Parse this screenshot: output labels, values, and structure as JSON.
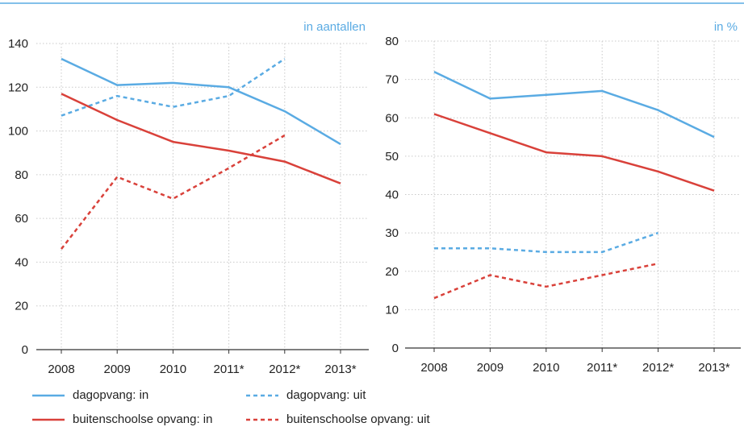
{
  "chart_data": [
    {
      "type": "line",
      "title": "in aantallen",
      "x": [
        "2008",
        "2009",
        "2010",
        "2011*",
        "2012*",
        "2013*"
      ],
      "ylim": [
        0,
        140
      ],
      "yticks": [
        0,
        20,
        40,
        60,
        80,
        100,
        120,
        140
      ],
      "grid": true,
      "series": [
        {
          "name": "dagopvang: in",
          "color": "#5aabe3",
          "dash": false,
          "values": [
            133,
            121,
            122,
            120,
            109,
            94
          ]
        },
        {
          "name": "dagopvang: uit",
          "color": "#5aabe3",
          "dash": true,
          "values": [
            107,
            116,
            111,
            116,
            133,
            null
          ]
        },
        {
          "name": "buitenschoolse opvang: in",
          "color": "#d9413a",
          "dash": false,
          "values": [
            117,
            105,
            95,
            91,
            86,
            76
          ]
        },
        {
          "name": "buitenschoolse opvang: uit",
          "color": "#d9413a",
          "dash": true,
          "values": [
            46,
            79,
            69,
            83,
            98,
            null
          ]
        }
      ]
    },
    {
      "type": "line",
      "title": "in %",
      "x": [
        "2008",
        "2009",
        "2010",
        "2011*",
        "2012*",
        "2013*"
      ],
      "ylim": [
        0,
        80
      ],
      "yticks": [
        0,
        10,
        20,
        30,
        40,
        50,
        60,
        70,
        80
      ],
      "grid": true,
      "series": [
        {
          "name": "dagopvang: in",
          "color": "#5aabe3",
          "dash": false,
          "values": [
            72,
            65,
            66,
            67,
            62,
            55
          ]
        },
        {
          "name": "dagopvang: uit",
          "color": "#5aabe3",
          "dash": true,
          "values": [
            26,
            26,
            25,
            25,
            30,
            null
          ]
        },
        {
          "name": "buitenschoolse opvang: in",
          "color": "#d9413a",
          "dash": false,
          "values": [
            61,
            56,
            51,
            50,
            46,
            41
          ]
        },
        {
          "name": "buitenschoolse opvang: uit",
          "color": "#d9413a",
          "dash": true,
          "values": [
            13,
            19,
            16,
            19,
            22,
            null
          ]
        }
      ]
    }
  ],
  "legend": [
    {
      "label": "dagopvang: in",
      "color": "#5aabe3",
      "dash": false
    },
    {
      "label": "dagopvang: uit",
      "color": "#5aabe3",
      "dash": true
    },
    {
      "label": "buitenschoolse opvang: in",
      "color": "#d9413a",
      "dash": false
    },
    {
      "label": "buitenschoolse opvang: uit",
      "color": "#d9413a",
      "dash": true
    }
  ],
  "colors": {
    "top_rule": "#5aabe3",
    "title": "#5aabe3",
    "grid": "#c9c9c9",
    "axis": "#333333"
  }
}
